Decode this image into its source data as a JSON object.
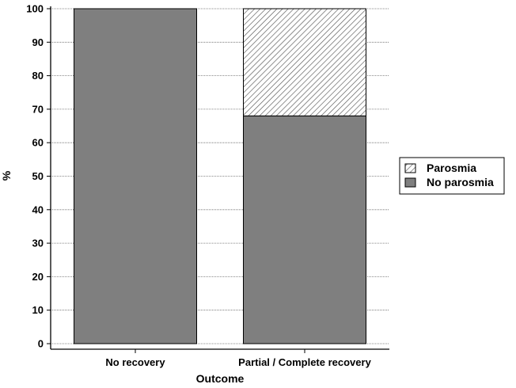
{
  "chart_data": {
    "type": "bar",
    "stacked": true,
    "categories": [
      "No recovery",
      "Partial / Complete recovery"
    ],
    "series": [
      {
        "name": "No parosmia",
        "values": [
          100,
          68
        ],
        "color": "#7f7f7f",
        "pattern": "solid"
      },
      {
        "name": "Parosmia",
        "values": [
          0,
          32
        ],
        "color": "#ffffff",
        "pattern": "diagonal-hatch"
      }
    ],
    "xlabel": "Outcome",
    "ylabel": "%",
    "ylim": [
      0,
      100
    ],
    "yticks": [
      0,
      10,
      20,
      30,
      40,
      50,
      60,
      70,
      80,
      90,
      100
    ],
    "grid": "horizontal dotted",
    "legend": {
      "placement": "right",
      "entries": [
        "Parosmia",
        "No parosmia"
      ]
    }
  }
}
